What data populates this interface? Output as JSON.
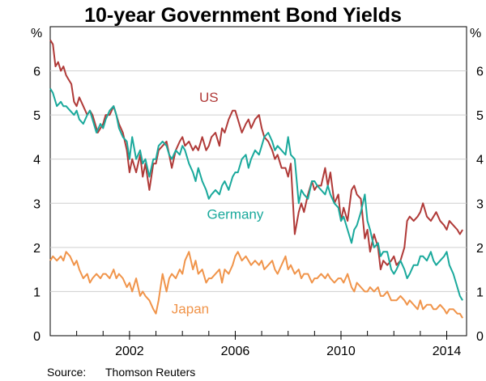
{
  "chart_data": {
    "type": "line",
    "title": "10-year Government Bond Yields",
    "left_unit": "%",
    "right_unit": "%",
    "xlim": [
      1999.0,
      2014.75
    ],
    "ylim": [
      0,
      7
    ],
    "y_ticks": [
      0,
      1,
      2,
      3,
      4,
      5,
      6
    ],
    "x_ticks": [
      {
        "value": 2002,
        "label": "2002"
      },
      {
        "value": 2006,
        "label": "2006"
      },
      {
        "value": 2010,
        "label": "2010"
      },
      {
        "value": 2014,
        "label": "2014"
      }
    ],
    "grid": true,
    "series": [
      {
        "name": "US",
        "color": "#b03a38",
        "x": [
          1999.0,
          1999.1,
          1999.2,
          1999.3,
          1999.4,
          1999.5,
          1999.6,
          1999.7,
          1999.8,
          1999.9,
          2000.0,
          2000.1,
          2000.25,
          2000.4,
          2000.5,
          2000.6,
          2000.8,
          2001.0,
          2001.1,
          2001.25,
          2001.4,
          2001.5,
          2001.6,
          2001.75,
          2001.9,
          2002.0,
          2002.1,
          2002.25,
          2002.4,
          2002.5,
          2002.6,
          2002.75,
          2002.9,
          2003.0,
          2003.1,
          2003.25,
          2003.4,
          2003.5,
          2003.6,
          2003.75,
          2003.9,
          2004.0,
          2004.1,
          2004.25,
          2004.4,
          2004.5,
          2004.6,
          2004.75,
          2004.9,
          2005.0,
          2005.1,
          2005.25,
          2005.4,
          2005.5,
          2005.6,
          2005.75,
          2005.9,
          2006.0,
          2006.1,
          2006.25,
          2006.4,
          2006.5,
          2006.6,
          2006.75,
          2006.9,
          2007.0,
          2007.1,
          2007.25,
          2007.4,
          2007.5,
          2007.6,
          2007.75,
          2007.9,
          2008.0,
          2008.1,
          2008.25,
          2008.4,
          2008.5,
          2008.6,
          2008.75,
          2008.9,
          2009.0,
          2009.1,
          2009.25,
          2009.4,
          2009.5,
          2009.6,
          2009.75,
          2009.9,
          2010.0,
          2010.1,
          2010.25,
          2010.4,
          2010.5,
          2010.6,
          2010.75,
          2010.9,
          2011.0,
          2011.1,
          2011.25,
          2011.4,
          2011.5,
          2011.6,
          2011.75,
          2011.9,
          2012.0,
          2012.1,
          2012.25,
          2012.4,
          2012.5,
          2012.6,
          2012.75,
          2012.9,
          2013.0,
          2013.1,
          2013.25,
          2013.4,
          2013.5,
          2013.6,
          2013.75,
          2013.9,
          2014.0,
          2014.1,
          2014.25,
          2014.4,
          2014.5,
          2014.6
        ],
        "values": [
          6.7,
          6.6,
          6.1,
          6.2,
          6.0,
          6.1,
          5.9,
          5.8,
          5.7,
          5.3,
          5.2,
          5.4,
          5.2,
          5.0,
          5.1,
          5.0,
          4.6,
          4.8,
          5.0,
          5.0,
          5.2,
          5.0,
          4.8,
          4.6,
          4.2,
          3.7,
          4.0,
          3.7,
          4.1,
          3.6,
          3.9,
          3.3,
          3.9,
          3.9,
          4.2,
          4.3,
          4.4,
          4.1,
          3.8,
          4.2,
          4.4,
          4.5,
          4.3,
          4.4,
          4.2,
          4.3,
          4.2,
          4.5,
          4.2,
          4.3,
          4.5,
          4.6,
          4.3,
          4.7,
          4.6,
          4.9,
          5.1,
          5.1,
          4.9,
          4.6,
          4.8,
          4.9,
          4.7,
          4.9,
          5.0,
          4.7,
          4.5,
          4.4,
          4.2,
          4.0,
          4.1,
          3.8,
          3.8,
          3.6,
          3.9,
          2.3,
          2.8,
          3.0,
          2.8,
          3.2,
          3.5,
          3.3,
          3.4,
          3.4,
          3.8,
          3.4,
          3.7,
          3.0,
          3.2,
          2.6,
          2.9,
          2.6,
          3.3,
          3.4,
          3.2,
          3.1,
          2.2,
          2.4,
          1.9,
          2.3,
          2.0,
          1.5,
          1.7,
          1.6,
          1.7,
          1.8,
          1.6,
          1.7,
          2.0,
          2.6,
          2.7,
          2.6,
          2.7,
          2.8,
          3.0,
          2.7,
          2.6,
          2.7,
          2.8,
          2.6,
          2.5,
          2.4,
          2.6,
          2.5,
          2.4,
          2.3,
          2.4
        ],
        "label_pos": [
          2005.0,
          5.3
        ]
      },
      {
        "name": "Germany",
        "color": "#1aa99c",
        "x": [
          1999.0,
          1999.1,
          1999.25,
          1999.4,
          1999.5,
          1999.6,
          1999.75,
          1999.9,
          2000.0,
          2000.1,
          2000.25,
          2000.4,
          2000.5,
          2000.6,
          2000.75,
          2000.9,
          2001.0,
          2001.1,
          2001.25,
          2001.4,
          2001.5,
          2001.6,
          2001.75,
          2001.9,
          2002.0,
          2002.1,
          2002.25,
          2002.4,
          2002.5,
          2002.6,
          2002.75,
          2002.9,
          2003.0,
          2003.1,
          2003.25,
          2003.4,
          2003.5,
          2003.6,
          2003.75,
          2003.9,
          2004.0,
          2004.1,
          2004.25,
          2004.4,
          2004.5,
          2004.6,
          2004.75,
          2004.9,
          2005.0,
          2005.1,
          2005.25,
          2005.4,
          2005.5,
          2005.6,
          2005.75,
          2005.9,
          2006.0,
          2006.1,
          2006.25,
          2006.4,
          2006.5,
          2006.6,
          2006.75,
          2006.9,
          2007.0,
          2007.1,
          2007.25,
          2007.4,
          2007.5,
          2007.6,
          2007.75,
          2007.9,
          2008.0,
          2008.1,
          2008.25,
          2008.4,
          2008.5,
          2008.6,
          2008.75,
          2008.9,
          2009.0,
          2009.1,
          2009.25,
          2009.4,
          2009.5,
          2009.6,
          2009.75,
          2009.9,
          2010.0,
          2010.1,
          2010.25,
          2010.4,
          2010.5,
          2010.6,
          2010.75,
          2010.9,
          2011.0,
          2011.1,
          2011.25,
          2011.4,
          2011.5,
          2011.6,
          2011.75,
          2011.9,
          2012.0,
          2012.1,
          2012.25,
          2012.4,
          2012.5,
          2012.6,
          2012.75,
          2012.9,
          2013.0,
          2013.1,
          2013.25,
          2013.4,
          2013.5,
          2013.6,
          2013.75,
          2013.9,
          2014.0,
          2014.1,
          2014.25,
          2014.4,
          2014.5,
          2014.6
        ],
        "values": [
          5.6,
          5.5,
          5.2,
          5.3,
          5.2,
          5.2,
          5.1,
          5.0,
          5.1,
          4.9,
          4.8,
          5.0,
          5.1,
          4.9,
          4.6,
          4.8,
          4.7,
          4.9,
          5.1,
          5.2,
          5.0,
          4.7,
          4.5,
          4.4,
          4.0,
          4.5,
          4.0,
          4.2,
          3.9,
          4.0,
          3.6,
          4.0,
          4.0,
          4.3,
          4.4,
          4.3,
          4.1,
          4.0,
          4.2,
          4.1,
          4.3,
          4.2,
          3.9,
          3.7,
          3.5,
          3.8,
          3.5,
          3.3,
          3.1,
          3.2,
          3.3,
          3.2,
          3.4,
          3.5,
          3.3,
          3.6,
          3.7,
          3.7,
          4.0,
          4.1,
          3.8,
          4.0,
          4.2,
          4.1,
          4.3,
          4.5,
          4.6,
          4.4,
          4.2,
          4.3,
          4.2,
          4.1,
          4.5,
          4.1,
          4.0,
          3.0,
          3.3,
          3.2,
          3.1,
          3.5,
          3.5,
          3.4,
          3.3,
          3.2,
          3.4,
          3.2,
          3.0,
          2.9,
          2.6,
          2.7,
          2.4,
          2.1,
          2.4,
          2.5,
          2.8,
          3.2,
          2.6,
          2.4,
          2.0,
          2.1,
          1.8,
          1.9,
          1.9,
          1.5,
          1.4,
          1.5,
          1.7,
          1.5,
          1.3,
          1.4,
          1.6,
          1.6,
          1.8,
          1.8,
          1.7,
          1.9,
          1.7,
          1.6,
          1.7,
          1.8,
          1.9,
          1.6,
          1.4,
          1.1,
          0.9,
          0.8
        ],
        "label_pos": [
          2006.0,
          2.65
        ]
      },
      {
        "name": "Japan",
        "color": "#f0944a",
        "x": [
          1999.0,
          1999.1,
          1999.25,
          1999.4,
          1999.5,
          1999.6,
          1999.75,
          1999.9,
          2000.0,
          2000.1,
          2000.25,
          2000.4,
          2000.5,
          2000.6,
          2000.75,
          2000.9,
          2001.0,
          2001.1,
          2001.25,
          2001.4,
          2001.5,
          2001.6,
          2001.75,
          2001.9,
          2002.0,
          2002.1,
          2002.25,
          2002.4,
          2002.5,
          2002.6,
          2002.75,
          2002.9,
          2003.0,
          2003.1,
          2003.25,
          2003.4,
          2003.5,
          2003.6,
          2003.75,
          2003.9,
          2004.0,
          2004.1,
          2004.25,
          2004.4,
          2004.5,
          2004.6,
          2004.75,
          2004.9,
          2005.0,
          2005.1,
          2005.25,
          2005.4,
          2005.5,
          2005.6,
          2005.75,
          2005.9,
          2006.0,
          2006.1,
          2006.25,
          2006.4,
          2006.5,
          2006.6,
          2006.75,
          2006.9,
          2007.0,
          2007.1,
          2007.25,
          2007.4,
          2007.5,
          2007.6,
          2007.75,
          2007.9,
          2008.0,
          2008.1,
          2008.25,
          2008.4,
          2008.5,
          2008.6,
          2008.75,
          2008.9,
          2009.0,
          2009.1,
          2009.25,
          2009.4,
          2009.5,
          2009.6,
          2009.75,
          2009.9,
          2010.0,
          2010.1,
          2010.25,
          2010.4,
          2010.5,
          2010.6,
          2010.75,
          2010.9,
          2011.0,
          2011.1,
          2011.25,
          2011.4,
          2011.5,
          2011.6,
          2011.75,
          2011.9,
          2012.0,
          2012.1,
          2012.25,
          2012.4,
          2012.5,
          2012.6,
          2012.75,
          2012.9,
          2013.0,
          2013.1,
          2013.25,
          2013.4,
          2013.5,
          2013.6,
          2013.75,
          2013.9,
          2014.0,
          2014.1,
          2014.25,
          2014.4,
          2014.5,
          2014.6
        ],
        "values": [
          1.7,
          1.8,
          1.7,
          1.8,
          1.7,
          1.9,
          1.8,
          1.6,
          1.7,
          1.5,
          1.3,
          1.4,
          1.2,
          1.3,
          1.4,
          1.3,
          1.4,
          1.4,
          1.3,
          1.5,
          1.3,
          1.4,
          1.3,
          1.1,
          1.2,
          1.0,
          1.3,
          0.9,
          1.0,
          0.9,
          0.8,
          0.6,
          0.5,
          0.8,
          1.4,
          1.0,
          1.3,
          1.4,
          1.3,
          1.5,
          1.4,
          1.7,
          1.9,
          1.5,
          1.7,
          1.4,
          1.5,
          1.2,
          1.3,
          1.3,
          1.4,
          1.5,
          1.2,
          1.5,
          1.4,
          1.6,
          1.8,
          1.9,
          1.7,
          1.8,
          1.7,
          1.6,
          1.7,
          1.6,
          1.7,
          1.5,
          1.6,
          1.7,
          1.5,
          1.4,
          1.6,
          1.8,
          1.5,
          1.6,
          1.4,
          1.5,
          1.3,
          1.4,
          1.4,
          1.2,
          1.3,
          1.3,
          1.4,
          1.3,
          1.4,
          1.3,
          1.2,
          1.3,
          1.3,
          1.2,
          1.4,
          1.1,
          1.0,
          1.2,
          1.1,
          1.0,
          1.0,
          1.1,
          1.0,
          1.1,
          0.9,
          0.9,
          1.0,
          0.8,
          0.8,
          0.8,
          0.9,
          0.8,
          0.7,
          0.8,
          0.7,
          0.6,
          0.8,
          0.6,
          0.7,
          0.7,
          0.6,
          0.6,
          0.7,
          0.6,
          0.5,
          0.6,
          0.6,
          0.5,
          0.5,
          0.4
        ],
        "label_pos": [
          2004.3,
          0.5
        ]
      }
    ]
  },
  "source": {
    "label": "Source:",
    "text": "Thomson Reuters"
  }
}
